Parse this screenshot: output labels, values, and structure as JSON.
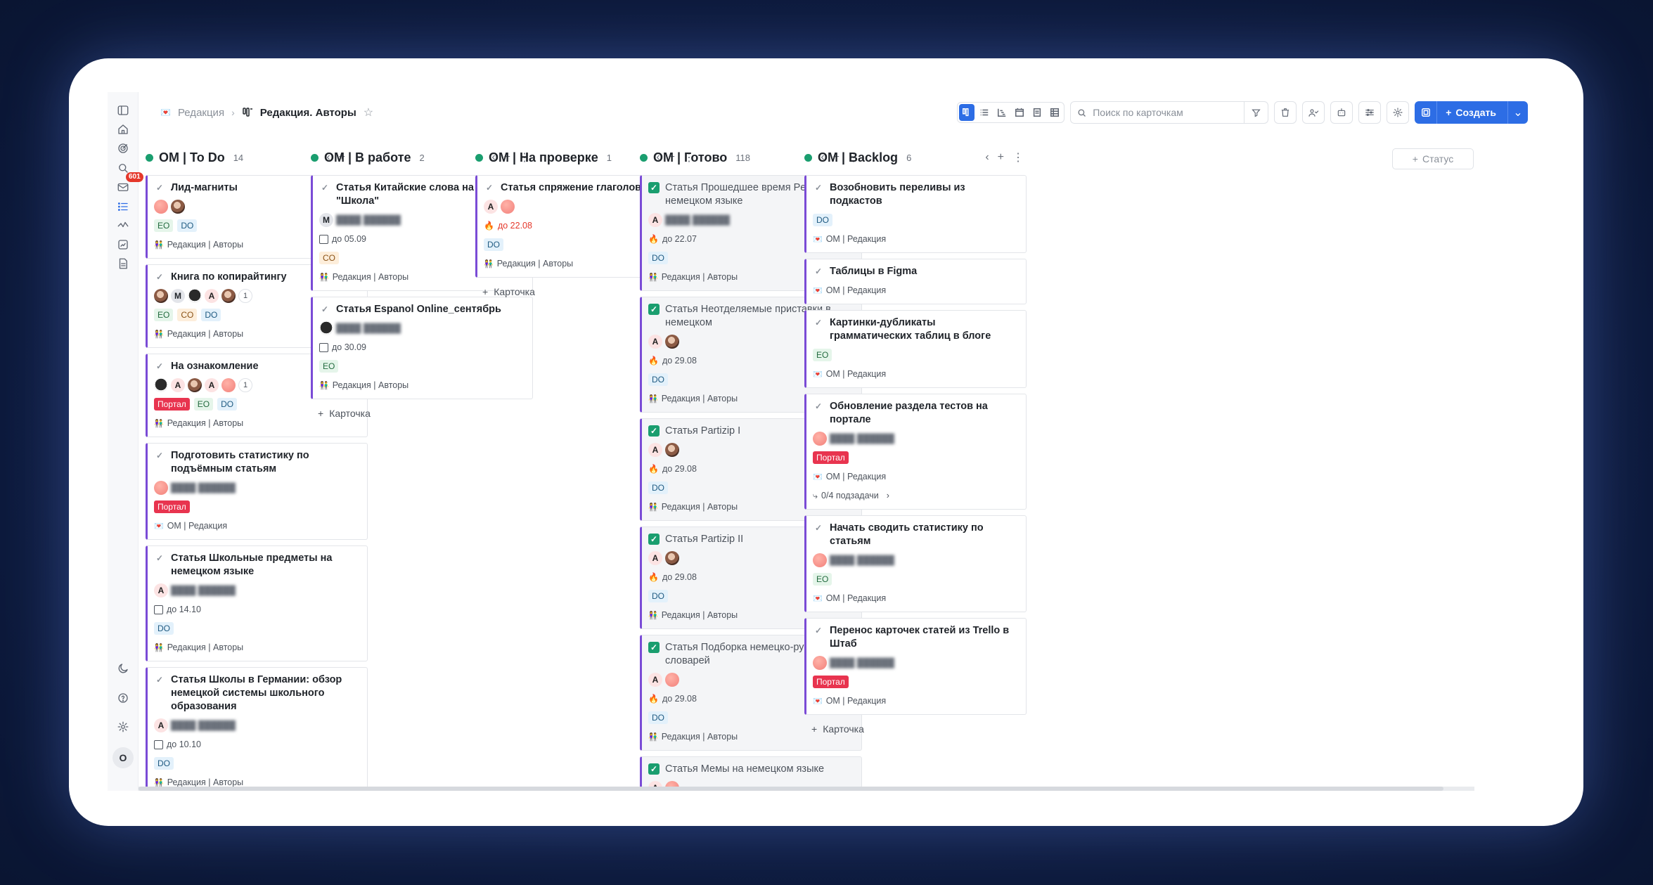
{
  "breadcrumb": {
    "parent": "Редакция",
    "current": "Редакция. Авторы"
  },
  "toolbar": {
    "search_placeholder": "Поиск по карточкам",
    "create_label": "Создать"
  },
  "sidebar": {
    "inbox_badge": "601"
  },
  "add_status_label": "Статус",
  "add_card_label": "Карточка",
  "colors": {
    "accent": "#2d6de5",
    "card_border": "#7a4bd6",
    "status_dot": "#1a9e6f",
    "portal_tag": "#e8344f"
  },
  "columns": [
    {
      "title": "OM | To Do",
      "count": "14",
      "cards": [
        {
          "title": "Лид-магниты",
          "tags": [
            "EO",
            "DO"
          ],
          "project": "Редакция | Авторы"
        },
        {
          "title": "Книга по копирайтингу",
          "more": "1",
          "tags": [
            "EO",
            "CO",
            "DO"
          ],
          "project": "Редакция | Авторы"
        },
        {
          "title": "На ознакомление",
          "more": "1",
          "tags": [
            "Портал",
            "EO",
            "DO"
          ],
          "project": "Редакция | Авторы"
        },
        {
          "title": "Подготовить статистику по подъёмным статьям",
          "tags": [
            "Портал"
          ],
          "project": "OM | Редакция"
        },
        {
          "title": "Статья Школьные предметы на немецком языке",
          "date": "до 14.10",
          "tags": [
            "DO"
          ],
          "project": "Редакция | Авторы"
        },
        {
          "title": "Статья Школы в Германии: обзор немецкой системы школьного образования",
          "date": "до 10.10",
          "tags": [
            "DO"
          ],
          "project": "Редакция | Авторы"
        }
      ]
    },
    {
      "title": "OM | В работе",
      "count": "2",
      "cards": [
        {
          "title": "Статья Китайские слова на тему \"Школа\"",
          "date": "до 05.09",
          "tags": [
            "CO"
          ],
          "project": "Редакция | Авторы"
        },
        {
          "title": "Статья Espanol Online_сентябрь",
          "date": "до 30.09",
          "tags": [
            "EO"
          ],
          "project": "Редакция | Авторы"
        }
      ]
    },
    {
      "title": "OM | На проверке",
      "count": "1",
      "cards": [
        {
          "title": "Статья спряжение глаголов",
          "date": "до 22.08",
          "tags": [
            "DO"
          ],
          "project": "Редакция | Авторы"
        }
      ]
    },
    {
      "title": "OM | Готово",
      "count": "118",
      "cards": [
        {
          "title": "Статья Прошедшее время Perfekt в немецком языке",
          "date": "до 22.07",
          "tags": [
            "DO"
          ],
          "project": "Редакция | Авторы"
        },
        {
          "title": "Статья Неотделяемые приставки в немецком",
          "date": "до 29.08",
          "tags": [
            "DO"
          ],
          "project": "Редакция | Авторы"
        },
        {
          "title": "Статья Partizip I",
          "date": "до 29.08",
          "tags": [
            "DO"
          ],
          "project": "Редакция | Авторы"
        },
        {
          "title": "Статья Partizip II",
          "date": "до 29.08",
          "tags": [
            "DO"
          ],
          "project": "Редакция | Авторы"
        },
        {
          "title": "Статья Подборка немецко-русских словарей",
          "date": "до 29.08",
          "tags": [
            "DO"
          ],
          "project": "Редакция | Авторы"
        },
        {
          "title": "Статья Мемы на немецком языке"
        }
      ]
    },
    {
      "title": "OM | Backlog",
      "count": "6",
      "cards": [
        {
          "title": "Возобновить переливы из подкастов",
          "tags": [
            "DO"
          ],
          "project": "OM | Редакция"
        },
        {
          "title": "Таблицы в Figma",
          "project": "OM | Редакция"
        },
        {
          "title": "Картинки-дубликаты грамматических таблиц в блоге",
          "tags": [
            "EO"
          ],
          "project": "OM | Редакция"
        },
        {
          "title": "Обновление раздела тестов на портале",
          "tags": [
            "Портал"
          ],
          "project": "OM | Редакция",
          "subtasks": "0/4 подзадачи"
        },
        {
          "title": "Начать сводить статистику по статьям",
          "tags": [
            "EO"
          ],
          "project": "OM | Редакция"
        },
        {
          "title": "Перенос карточек статей из Trello в Штаб",
          "tags": [
            "Портал"
          ],
          "project": "OM | Редакция"
        }
      ]
    }
  ]
}
